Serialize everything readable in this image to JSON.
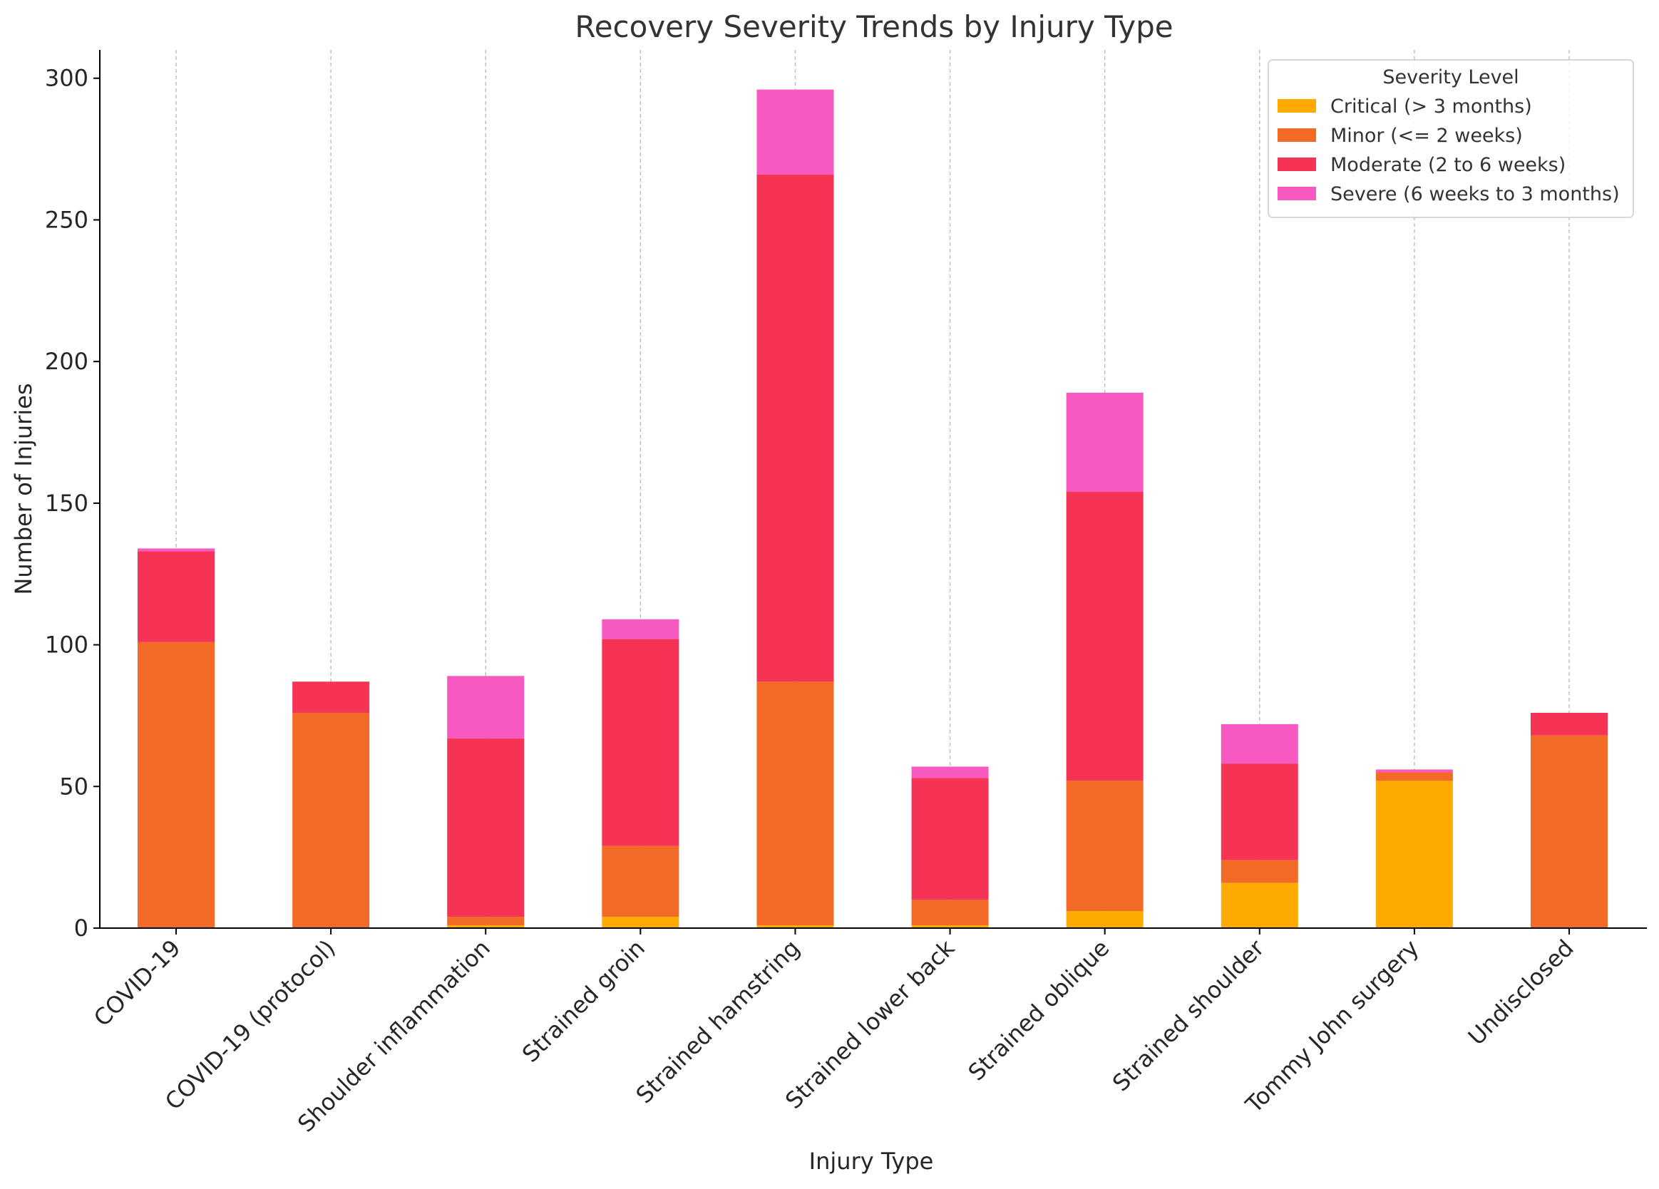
{
  "chart_data": {
    "type": "bar",
    "stacked": true,
    "title": "Recovery Severity Trends by Injury Type",
    "xlabel": "Injury Type",
    "ylabel": "Number of Injuries",
    "ylim": [
      0,
      310
    ],
    "yticks": [
      0,
      50,
      100,
      150,
      200,
      250,
      300
    ],
    "grid": "vertical dashed lines at categories",
    "legend": {
      "title": "Severity Level",
      "position": "top-right"
    },
    "categories": [
      "COVID-19",
      "COVID-19 (protocol)",
      "Shoulder inflammation",
      "Strained groin",
      "Strained hamstring",
      "Strained lower back",
      "Strained oblique",
      "Strained shoulder",
      "Tommy John surgery",
      "Undisclosed"
    ],
    "series": [
      {
        "name": "Critical (> 3 months)",
        "color": "#FFAA00",
        "values": [
          0,
          0,
          1,
          4,
          1,
          1,
          6,
          16,
          52,
          0
        ]
      },
      {
        "name": "Minor (<= 2 weeks)",
        "color": "#F26A25",
        "values": [
          101,
          76,
          3,
          25,
          86,
          9,
          46,
          8,
          3,
          68
        ]
      },
      {
        "name": "Moderate (2 to 6 weeks)",
        "color": "#F53455",
        "values": [
          32,
          11,
          63,
          73,
          179,
          43,
          102,
          34,
          0,
          8
        ]
      },
      {
        "name": "Severe (6 weeks to 3 months)",
        "color": "#F859C0",
        "values": [
          1,
          0,
          22,
          7,
          30,
          4,
          35,
          14,
          1,
          0
        ]
      }
    ]
  }
}
